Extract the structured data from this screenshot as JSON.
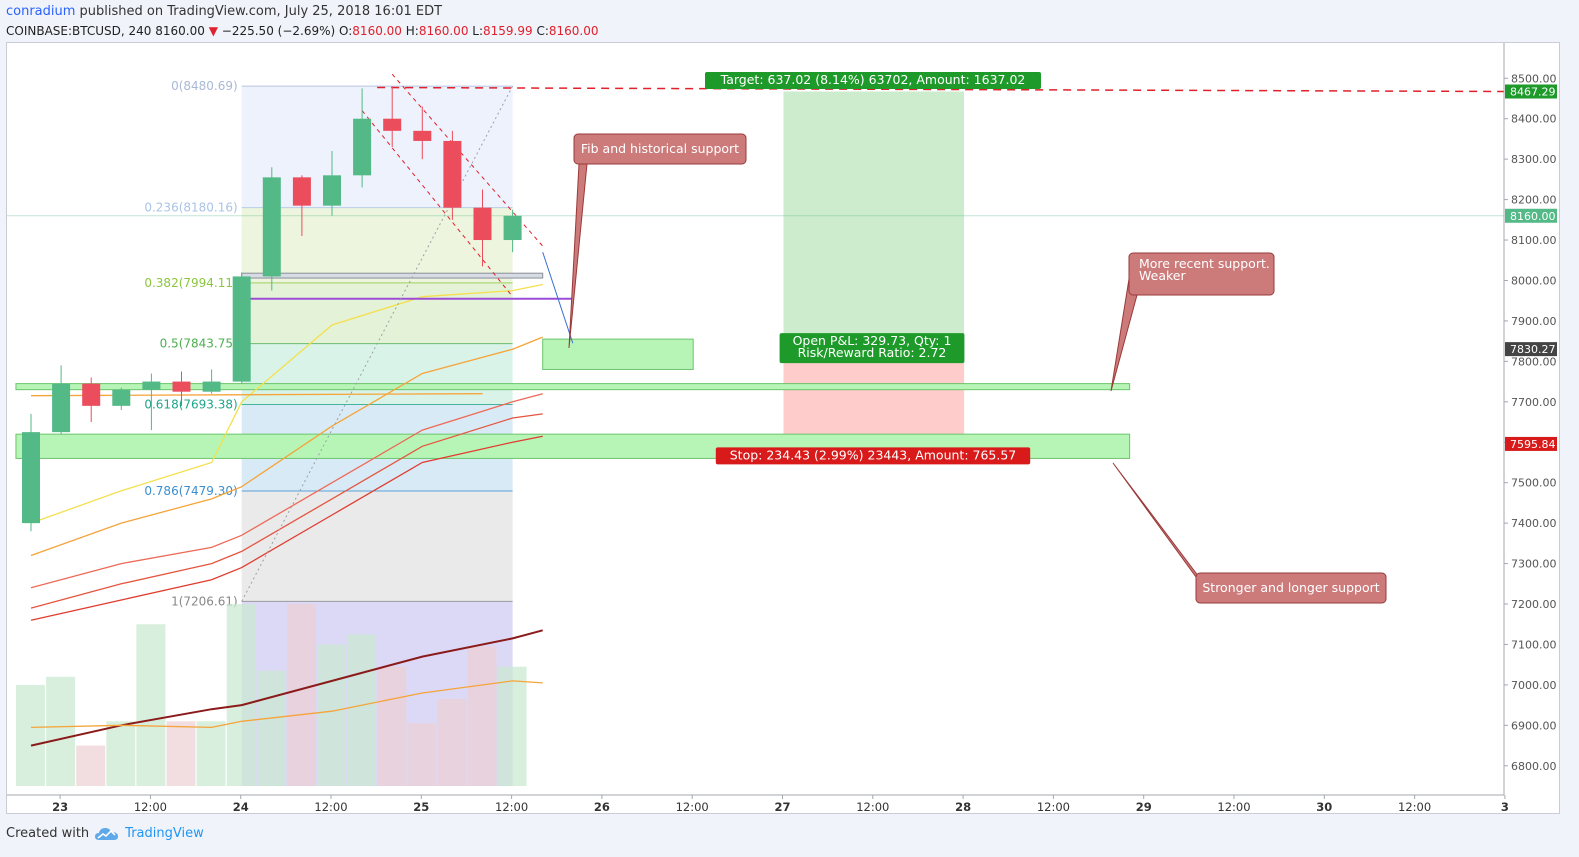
{
  "header": {
    "author": "conradium",
    "published_text": " published on TradingView.com, July 25, 2018 16:01 EDT",
    "symbol": "COINBASE:BTCUSD, 240",
    "last": "8160.00",
    "change": "−225.50 (−2.69%)",
    "o_label": "O:",
    "o_value": "8160.00",
    "h_label": "H:",
    "h_value": "8160.00",
    "l_label": "L:",
    "l_value": "8159.99",
    "c_label": "C:",
    "c_value": "8160.00"
  },
  "footer": {
    "created_with": "Created with",
    "brand": "TradingView"
  },
  "colors": {
    "up": "#53b987",
    "down": "#eb4d5c",
    "fib_blue_bg": "#eaf0fb",
    "support_zone": "#b7f5b7",
    "target_zone": "#cdeccd",
    "stop_zone": "#ffcccc",
    "callout": "#cc7a7a",
    "target_label": "#1e9a2a",
    "stop_label": "#d81a1a"
  },
  "chart_data": {
    "type": "candlestick",
    "symbol": "COINBASE:BTCUSD",
    "interval": "240",
    "ylim": [
      6750,
      8560
    ],
    "y_ticks": [
      6800,
      6900,
      7000,
      7100,
      7200,
      7300,
      7400,
      7500,
      7600,
      7700,
      7800,
      7900,
      8000,
      8100,
      8200,
      8300,
      8400,
      8500
    ],
    "y_tick_labels": [
      "6800.00",
      "6900.00",
      "7000.00",
      "7100.00",
      "7200.00",
      "7300.00",
      "7400.00",
      "7500.00",
      "7600.00",
      "7700.00",
      "7800.00",
      "7900.00",
      "8000.00",
      "8100.00",
      "8200.00",
      "8300.00",
      "8400.00",
      "8500.00"
    ],
    "x_ticks": [
      {
        "label": "23",
        "bar": 1,
        "bold": true
      },
      {
        "label": "12:00",
        "bar": 4
      },
      {
        "label": "24",
        "bar": 7,
        "bold": true
      },
      {
        "label": "12:00",
        "bar": 10
      },
      {
        "label": "25",
        "bar": 13,
        "bold": true
      },
      {
        "label": "12:00",
        "bar": 16
      },
      {
        "label": "26",
        "bar": 19,
        "bold": true
      },
      {
        "label": "12:00",
        "bar": 22
      },
      {
        "label": "27",
        "bar": 25,
        "bold": true
      },
      {
        "label": "12:00",
        "bar": 28
      },
      {
        "label": "28",
        "bar": 31,
        "bold": true
      },
      {
        "label": "12:00",
        "bar": 34
      },
      {
        "label": "29",
        "bar": 37,
        "bold": true
      },
      {
        "label": "12:00",
        "bar": 40
      },
      {
        "label": "30",
        "bar": 43,
        "bold": true
      },
      {
        "label": "12:00",
        "bar": 46
      },
      {
        "label": "3",
        "bar": 49,
        "bold": true
      }
    ],
    "candles": [
      {
        "o": 7400,
        "h": 7670,
        "l": 7380,
        "c": 7625
      },
      {
        "o": 7625,
        "h": 7790,
        "l": 7620,
        "c": 7745
      },
      {
        "o": 7745,
        "h": 7760,
        "l": 7650,
        "c": 7690
      },
      {
        "o": 7690,
        "h": 7735,
        "l": 7680,
        "c": 7730
      },
      {
        "o": 7730,
        "h": 7770,
        "l": 7630,
        "c": 7750
      },
      {
        "o": 7750,
        "h": 7775,
        "l": 7690,
        "c": 7725
      },
      {
        "o": 7725,
        "h": 7780,
        "l": 7720,
        "c": 7750
      },
      {
        "o": 7750,
        "h": 8020,
        "l": 7745,
        "c": 8010
      },
      {
        "o": 8010,
        "h": 8280,
        "l": 7975,
        "c": 8255
      },
      {
        "o": 8255,
        "h": 8260,
        "l": 8110,
        "c": 8185
      },
      {
        "o": 8185,
        "h": 8320,
        "l": 8160,
        "c": 8260
      },
      {
        "o": 8260,
        "h": 8475,
        "l": 8230,
        "c": 8400
      },
      {
        "o": 8400,
        "h": 8480,
        "l": 8330,
        "c": 8370
      },
      {
        "o": 8370,
        "h": 8430,
        "l": 8300,
        "c": 8345
      },
      {
        "o": 8345,
        "h": 8370,
        "l": 8150,
        "c": 8180
      },
      {
        "o": 8180,
        "h": 8225,
        "l": 8035,
        "c": 8100
      },
      {
        "o": 8100,
        "h": 8175,
        "l": 8070,
        "c": 8160
      }
    ],
    "volume_ylim": [
      6750,
      7350
    ],
    "volumes": [
      {
        "v": 7000,
        "dir": "up"
      },
      {
        "v": 7020,
        "dir": "up"
      },
      {
        "v": 6850,
        "dir": "down"
      },
      {
        "v": 6910,
        "dir": "up"
      },
      {
        "v": 7150,
        "dir": "up"
      },
      {
        "v": 6910,
        "dir": "down"
      },
      {
        "v": 6910,
        "dir": "up"
      },
      {
        "v": 7200,
        "dir": "up"
      },
      {
        "v": 7035,
        "dir": "up"
      },
      {
        "v": 7200,
        "dir": "down"
      },
      {
        "v": 7100,
        "dir": "up"
      },
      {
        "v": 7125,
        "dir": "up"
      },
      {
        "v": 7045,
        "dir": "down"
      },
      {
        "v": 6905,
        "dir": "down"
      },
      {
        "v": 6965,
        "dir": "down"
      },
      {
        "v": 7095,
        "dir": "down"
      },
      {
        "v": 7045,
        "dir": "up"
      }
    ],
    "fib": {
      "start_bar": 7,
      "end_bar": 16.0,
      "levels": [
        {
          "label": "0(8480.69)",
          "value": 8480.69,
          "color": "#aab8d8",
          "bg": "#eaf0fb"
        },
        {
          "label": "0.236(8180.16)",
          "value": 8180.16,
          "color": "#aac4e6",
          "bg": "#eaf3d8"
        },
        {
          "label": "0.382(7994.11)",
          "value": 7994.11,
          "color": "#8cc63f",
          "bg": "#dff0d0"
        },
        {
          "label": "0.5(7843.75)",
          "value": 7843.75,
          "color": "#4caf50",
          "bg": "#d4f1e5"
        },
        {
          "label": "0.618(7693.38)",
          "value": 7693.38,
          "color": "#1fa68a",
          "bg": "#d1e6f4"
        },
        {
          "label": "0.786(7479.30)",
          "value": 7479.3,
          "color": "#3b8fd0",
          "bg": "#e6e6e6"
        },
        {
          "label": "1(7206.61)",
          "value": 7206.61,
          "color": "#888888",
          "bg": "#d6d2f5"
        }
      ]
    },
    "price_labels": [
      {
        "text": "8467.29",
        "value": 8467.29,
        "bg": "#1e9a2a"
      },
      {
        "text": "8160.00",
        "value": 8160.0,
        "bg": "#53b987"
      },
      {
        "text": "7830.27",
        "value": 7830.27,
        "bg": "#444444"
      },
      {
        "text": "7595.84",
        "value": 7595.84,
        "bg": "#d81a1a"
      }
    ],
    "position": {
      "entry": 7830.27,
      "target": 8467.29,
      "stop": 7595.84,
      "start_bar": 25,
      "end_bar": 31,
      "target_label": "Target: 637.02 (8.14%) 63702, Amount: 1637.02",
      "stop_label": "Stop: 234.43 (2.99%) 23443, Amount: 765.57",
      "pnl_label": "Open P&L: 329.73, Qty: 1",
      "rr_label": "Risk/Reward Ratio: 2.72"
    },
    "support_zones": [
      {
        "name": "small",
        "top": 7855,
        "bottom": 7780,
        "start_bar": 17,
        "end_bar": 22
      },
      {
        "name": "recent",
        "top": 7745,
        "bottom": 7730,
        "start_bar": -0.5,
        "end_bar": 36.5
      },
      {
        "name": "longer",
        "top": 7620,
        "bottom": 7560,
        "start_bar": -0.5,
        "end_bar": 36.5
      }
    ],
    "annotations": [
      {
        "text": "Fib and historical support"
      },
      {
        "text_line1": "More recent support.",
        "text_line2": "Weaker"
      },
      {
        "text": "Stronger and longer support"
      }
    ],
    "moving_averages": [
      {
        "name": "yellow",
        "color": "#f4e04d",
        "points": [
          [
            0,
            7400
          ],
          [
            3,
            7480
          ],
          [
            6,
            7550
          ],
          [
            7,
            7700
          ],
          [
            10,
            7890
          ],
          [
            13,
            7960
          ],
          [
            16,
            7975
          ],
          [
            17,
            7990
          ]
        ]
      },
      {
        "name": "orange",
        "color": "#f5a43a",
        "points": [
          [
            0,
            7320
          ],
          [
            3,
            7400
          ],
          [
            6,
            7460
          ],
          [
            7,
            7490
          ],
          [
            10,
            7640
          ],
          [
            13,
            7770
          ],
          [
            16,
            7830
          ],
          [
            17,
            7860
          ]
        ]
      },
      {
        "name": "orange-flat",
        "color": "#f5a43a",
        "points": [
          [
            0,
            7715
          ],
          [
            15,
            7720
          ]
        ]
      },
      {
        "name": "red-1",
        "color": "#ee6a58",
        "points": [
          [
            0,
            7240
          ],
          [
            3,
            7300
          ],
          [
            6,
            7340
          ],
          [
            7,
            7370
          ],
          [
            10,
            7500
          ],
          [
            13,
            7630
          ],
          [
            16,
            7700
          ],
          [
            17,
            7720
          ]
        ]
      },
      {
        "name": "red-2",
        "color": "#e5553f",
        "points": [
          [
            0,
            7190
          ],
          [
            3,
            7250
          ],
          [
            6,
            7300
          ],
          [
            7,
            7330
          ],
          [
            10,
            7460
          ],
          [
            13,
            7590
          ],
          [
            16,
            7660
          ],
          [
            17,
            7670
          ]
        ]
      },
      {
        "name": "red-3",
        "color": "#e03c30",
        "points": [
          [
            0,
            7160
          ],
          [
            3,
            7210
          ],
          [
            6,
            7260
          ],
          [
            7,
            7290
          ],
          [
            10,
            7420
          ],
          [
            13,
            7550
          ],
          [
            16,
            7600
          ],
          [
            17,
            7615
          ]
        ]
      },
      {
        "name": "purple",
        "color": "#9b4dd6",
        "points": [
          [
            7,
            7955
          ],
          [
            18,
            7955
          ]
        ]
      },
      {
        "name": "volume-ma",
        "color": "#8b1a1a",
        "points": [
          [
            0,
            6850
          ],
          [
            3,
            6900
          ],
          [
            6,
            6940
          ],
          [
            7,
            6950
          ],
          [
            10,
            7010
          ],
          [
            13,
            7070
          ],
          [
            16,
            7115
          ],
          [
            17,
            7135
          ]
        ]
      },
      {
        "name": "volume-ma-orange",
        "color": "#f5a43a",
        "points": [
          [
            0,
            6895
          ],
          [
            3,
            6900
          ],
          [
            6,
            6895
          ],
          [
            7,
            6910
          ],
          [
            10,
            6935
          ],
          [
            13,
            6980
          ],
          [
            16,
            7010
          ],
          [
            17,
            7005
          ]
        ]
      }
    ]
  }
}
